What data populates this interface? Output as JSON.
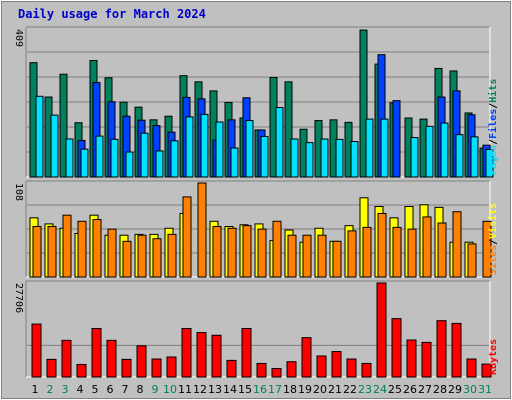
{
  "title": "Daily usage for March 2024",
  "colors": {
    "background": "#c0c0c0",
    "plot_background": "#c0c0c0",
    "hits": "#00805c",
    "files": "#0040ff",
    "pages": "#00e0ff",
    "visits": "#ffff00",
    "sites": "#ff8000",
    "kbytes": "#ff0000",
    "weekday_label": "#000000",
    "weekend_label": "#00805c",
    "grid": "#808080"
  },
  "chart_data": [
    {
      "type": "bar",
      "title": "Daily usage for March 2024",
      "panel": "hits-files-pages",
      "ymax_label": "409",
      "ylim": [
        0,
        409
      ],
      "categories": [
        "1",
        "2",
        "3",
        "4",
        "5",
        "6",
        "7",
        "8",
        "9",
        "10",
        "11",
        "12",
        "13",
        "14",
        "15",
        "16",
        "17",
        "18",
        "19",
        "20",
        "21",
        "22",
        "23",
        "24",
        "25",
        "26",
        "27",
        "28",
        "29",
        "30",
        "31"
      ],
      "legend": [
        "Pages",
        "Files",
        "Hits"
      ],
      "series": [
        {
          "name": "Hits",
          "values": [
            316,
            221,
            284,
            150,
            322,
            274,
            207,
            193,
            158,
            168,
            280,
            263,
            238,
            206,
            163,
            130,
            275,
            263,
            132,
            156,
            158,
            151,
            406,
            312,
            205,
            163,
            160,
            300,
            293,
            177,
            80
          ]
        },
        {
          "name": "Files",
          "values": [
            0,
            0,
            0,
            101,
            261,
            208,
            168,
            157,
            142,
            124,
            220,
            216,
            102,
            158,
            219,
            130,
            0,
            0,
            0,
            0,
            0,
            0,
            0,
            338,
            211,
            0,
            0,
            221,
            238,
            172,
            88
          ]
        },
        {
          "name": "Pages",
          "values": [
            223,
            171,
            105,
            77,
            113,
            104,
            69,
            121,
            72,
            100,
            166,
            173,
            152,
            80,
            156,
            112,
            192,
            105,
            95,
            105,
            104,
            98,
            160,
            160,
            0,
            109,
            140,
            149,
            117,
            111,
            76
          ]
        }
      ]
    },
    {
      "type": "bar",
      "panel": "visits-sites",
      "ymax_label": "108",
      "ylim": [
        0,
        108
      ],
      "categories": [
        "1",
        "2",
        "3",
        "4",
        "5",
        "6",
        "7",
        "8",
        "9",
        "10",
        "11",
        "12",
        "13",
        "14",
        "15",
        "16",
        "17",
        "18",
        "19",
        "20",
        "21",
        "22",
        "23",
        "24",
        "25",
        "26",
        "27",
        "28",
        "29",
        "30",
        "31"
      ],
      "legend": [
        "Sites",
        "Visits"
      ],
      "series": [
        {
          "name": "Visits",
          "values": [
            68,
            61,
            56,
            50,
            71,
            48,
            48,
            49,
            49,
            56,
            73,
            0,
            64,
            58,
            60,
            61,
            42,
            54,
            40,
            56,
            41,
            59,
            91,
            81,
            68,
            81,
            83,
            80,
            40,
            40,
            0
          ]
        },
        {
          "name": "Sites",
          "values": [
            58,
            58,
            71,
            64,
            66,
            55,
            41,
            48,
            44,
            49,
            92,
            108,
            58,
            56,
            59,
            55,
            64,
            48,
            48,
            48,
            41,
            53,
            57,
            73,
            57,
            55,
            69,
            62,
            75,
            38,
            64
          ]
        }
      ]
    },
    {
      "type": "bar",
      "panel": "kbytes",
      "ymax_label": "27706",
      "ylim": [
        0,
        27706
      ],
      "categories": [
        "1",
        "2",
        "3",
        "4",
        "5",
        "6",
        "7",
        "8",
        "9",
        "10",
        "11",
        "12",
        "13",
        "14",
        "15",
        "16",
        "17",
        "18",
        "19",
        "20",
        "21",
        "22",
        "23",
        "24",
        "25",
        "26",
        "27",
        "28",
        "29",
        "30",
        "31"
      ],
      "legend": [
        "KBytes"
      ],
      "series": [
        {
          "name": "KBytes",
          "values": [
            15600,
            5200,
            10800,
            3700,
            14300,
            10800,
            5200,
            9200,
            5300,
            5900,
            14300,
            13100,
            12300,
            4900,
            14300,
            4000,
            2500,
            4500,
            11600,
            6200,
            7500,
            5300,
            4000,
            27706,
            17200,
            10900,
            10200,
            16600,
            15800,
            5300,
            3800
          ]
        }
      ]
    }
  ]
}
